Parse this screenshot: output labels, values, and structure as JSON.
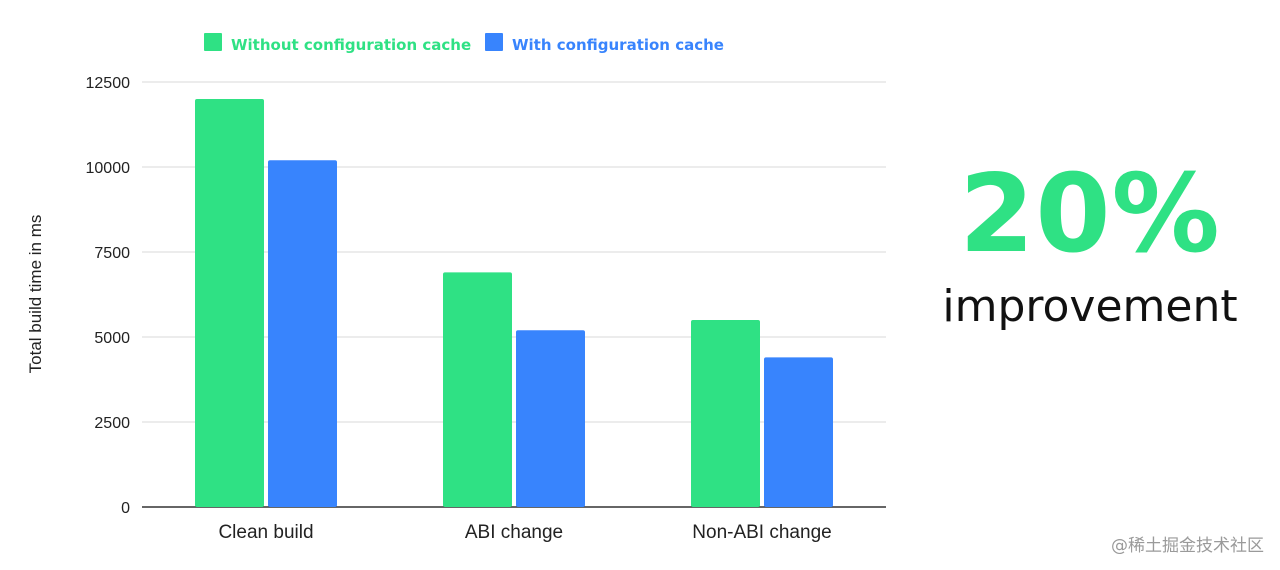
{
  "chart_data": {
    "type": "bar",
    "title": "",
    "xlabel": "",
    "ylabel": "Total build time in ms",
    "categories": [
      "Clean build",
      "ABI change",
      "Non-ABI change"
    ],
    "series": [
      {
        "name": "Without configuration cache",
        "color": "#2fe184",
        "values": [
          12000,
          6900,
          5500
        ]
      },
      {
        "name": "With configuration cache",
        "color": "#3884fd",
        "values": [
          10200,
          5200,
          4400
        ]
      }
    ],
    "ylim": [
      0,
      12500
    ],
    "yticks": [
      0,
      2500,
      5000,
      7500,
      10000,
      12500
    ],
    "grid": true,
    "legend_position": "top"
  },
  "headline": {
    "value": "20%",
    "label": "improvement",
    "color": "#2fe184"
  },
  "watermark": "@稀土掘金技术社区"
}
